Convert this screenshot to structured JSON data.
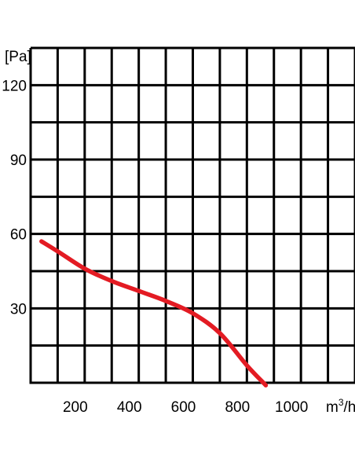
{
  "chart_data": {
    "type": "line",
    "title": "",
    "ylabel": "[Pa]",
    "xlabel_base": "m",
    "xlabel_sup": "3",
    "xlabel_tail": "/h",
    "xlim": [
      0,
      1200
    ],
    "ylim": [
      0,
      135
    ],
    "grid": true,
    "x_ticks": [
      200,
      400,
      600,
      800,
      1000
    ],
    "y_ticks": [
      30,
      60,
      90,
      120
    ],
    "x_tick_labels": [
      "200",
      "400",
      "600",
      "800",
      "1000"
    ],
    "y_tick_labels": [
      "30",
      "60",
      "90",
      "120"
    ],
    "series": [
      {
        "color": "#e31b23",
        "points": [
          [
            40,
            57
          ],
          [
            100,
            53
          ],
          [
            200,
            46
          ],
          [
            300,
            41
          ],
          [
            400,
            37
          ],
          [
            500,
            33
          ],
          [
            600,
            28
          ],
          [
            700,
            20
          ],
          [
            800,
            7
          ],
          [
            870,
            -1
          ]
        ]
      }
    ]
  }
}
